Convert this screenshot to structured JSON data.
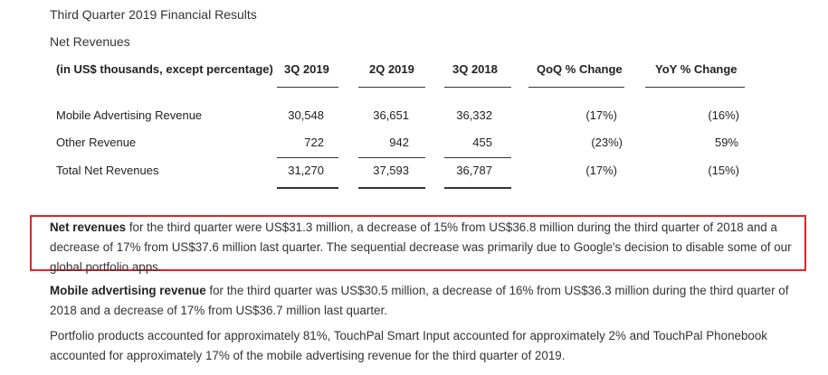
{
  "header": {
    "title": "Third Quarter 2019 Financial Results",
    "subtitle": "Net Revenues"
  },
  "table": {
    "columns": [
      "(in US$ thousands, except percentage)",
      "3Q 2019",
      "2Q 2019",
      "3Q 2018",
      "QoQ % Change",
      "YoY % Change"
    ],
    "rows": [
      {
        "label": "Mobile Advertising Revenue",
        "q3_2019": "30,548",
        "q2_2019": "36,651",
        "q3_2018": "36,332",
        "qoq": "(17%)",
        "yoy": "(16%)"
      },
      {
        "label": "Other Revenue",
        "q3_2019": "722",
        "q2_2019": "942",
        "q3_2018": "455",
        "qoq": "(23%)",
        "yoy": "59%"
      },
      {
        "label": "Total Net Revenues",
        "q3_2019": "31,270",
        "q2_2019": "37,593",
        "q3_2018": "36,787",
        "qoq": "(17%)",
        "yoy": "(15%)"
      }
    ]
  },
  "paragraphs": {
    "net_revenues": {
      "bold": "Net revenues",
      "text": " for the third quarter were US$31.3 million, a decrease of 15% from US$36.8 million during the third quarter of 2018 and a decrease of 17% from US$37.6 million last quarter. The sequential decrease was primarily due to Google's decision to disable some of our global portfolio apps."
    },
    "mobile_ad": {
      "bold": "Mobile advertising revenue",
      "text": " for the third quarter was US$30.5 million, a decrease of 16% from US$36.3 million during the third quarter of 2018 and a decrease of 17% from US$36.7 million last quarter."
    },
    "portfolio": {
      "text": "Portfolio products accounted for approximately 81%, TouchPal Smart Input accounted for approximately 2% and TouchPal Phonebook accounted for approximately 17% of the mobile advertising revenue for the third quarter of 2019."
    }
  },
  "colors": {
    "highlight_border": "#e8212a",
    "text": "#333333"
  }
}
